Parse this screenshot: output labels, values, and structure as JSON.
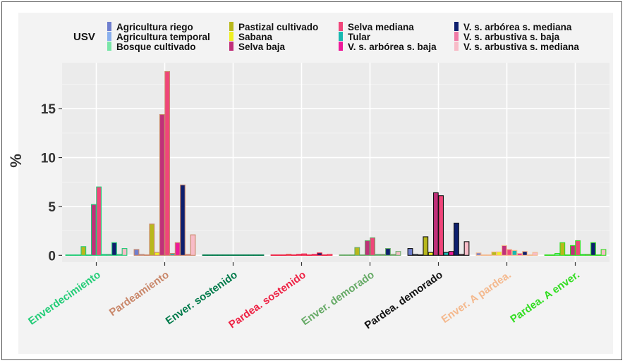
{
  "chart_data": {
    "type": "bar",
    "title": "",
    "xlabel": "",
    "ylabel": "%",
    "ylim": [
      -0.7,
      19.7
    ],
    "yticks": [
      0,
      5,
      10,
      15
    ],
    "legend_title": "USV",
    "legend_position": "top",
    "categories": [
      "Enverdecimiento",
      "Pardeamiento",
      "Enver. sostenido",
      "Pardea. sostenido",
      "Enver. demorado",
      "Pardea. demorado",
      "Enver. A pardea.",
      "Pardea. A enver."
    ],
    "category_colors": [
      "#22cc77",
      "#c9876a",
      "#007a4a",
      "#ee2244",
      "#66aa66",
      "#111111",
      "#f4b98e",
      "#33dd22"
    ],
    "series": [
      {
        "name": "Agricultura riego",
        "color": "#6f7fcf",
        "values": [
          0.05,
          0.6,
          0.05,
          0.05,
          0.05,
          0.7,
          0.25,
          0.05
        ]
      },
      {
        "name": "Agricultura temporal",
        "color": "#8ab0ee",
        "values": [
          0.05,
          0.1,
          0.05,
          0.05,
          0.05,
          0.1,
          0.05,
          0.05
        ]
      },
      {
        "name": "Bosque cultivado",
        "color": "#7ae6a8",
        "values": [
          0.05,
          0.05,
          0.05,
          0.05,
          0.05,
          0.05,
          0.05,
          0.2
        ]
      },
      {
        "name": "Pastizal cultivado",
        "color": "#b8b81c",
        "values": [
          0.9,
          3.2,
          0.05,
          0.1,
          0.8,
          1.9,
          0.35,
          1.3
        ]
      },
      {
        "name": "Sabana",
        "color": "#f0f020",
        "values": [
          0.05,
          0.3,
          0.05,
          0.05,
          0.05,
          0.3,
          0.35,
          0.05
        ]
      },
      {
        "name": "Selva baja",
        "color": "#c0307a",
        "values": [
          5.2,
          14.4,
          0.05,
          0.1,
          1.5,
          6.4,
          1.0,
          1.0
        ]
      },
      {
        "name": "Selva mediana",
        "color": "#f0457a",
        "values": [
          7.0,
          18.8,
          0.05,
          0.15,
          1.8,
          6.1,
          0.6,
          1.5
        ]
      },
      {
        "name": "Tular",
        "color": "#18b8b0",
        "values": [
          0.1,
          0.2,
          0.05,
          0.05,
          0.1,
          0.3,
          0.5,
          0.1
        ]
      },
      {
        "name": "V. s. arbórea s. baja",
        "color": "#ee1a9a",
        "values": [
          0.1,
          1.3,
          0.05,
          0.1,
          0.1,
          0.4,
          0.2,
          0.1
        ]
      },
      {
        "name": "V. s. arbórea s. mediana",
        "color": "#0e1f6e",
        "values": [
          1.3,
          7.2,
          0.05,
          0.25,
          0.7,
          3.3,
          0.4,
          1.3
        ]
      },
      {
        "name": "V. s. arbustiva s. baja",
        "color": "#f07aa6",
        "values": [
          0.1,
          0.1,
          0.05,
          0.05,
          0.1,
          0.1,
          0.05,
          0.05
        ]
      },
      {
        "name": "V. s. arbustiva s. mediana",
        "color": "#f8bcc8",
        "values": [
          0.7,
          2.1,
          0.05,
          0.1,
          0.4,
          1.4,
          0.3,
          0.6
        ]
      }
    ]
  }
}
